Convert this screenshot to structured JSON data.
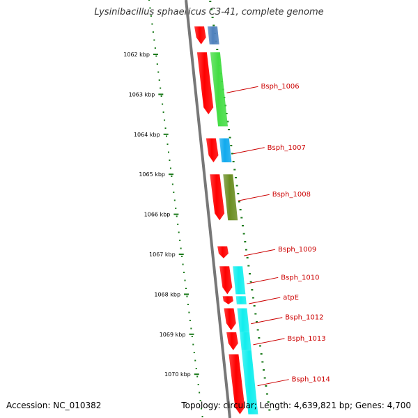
{
  "header": {
    "title": "Lysinibacillus sphaericus C3-41, complete genome"
  },
  "footer": {
    "accession": "Accession: NC_010382",
    "summary": "Topology: circular; Length: 4,639,821 bp; Genes: 4,700"
  },
  "scale": {
    "ticks": [
      "1062 kbp",
      "1063 kbp",
      "1064 kbp",
      "1065 kbp",
      "1066 kbp",
      "1067 kbp",
      "1068 kbp",
      "1069 kbp",
      "1070 kbp"
    ]
  },
  "colors": {
    "label_color": "#cc0000",
    "tick_color": "#1a7a1a",
    "backbone": "#777777",
    "orf_color": "#ff0000"
  },
  "genes": [
    {
      "name": "",
      "color": "#4f81bd",
      "start": 1061.3,
      "end": 1061.75
    },
    {
      "name": "Bsph_1006",
      "color": "#44dd44",
      "start": 1061.95,
      "end": 1063.8
    },
    {
      "name": "Bsph_1007",
      "color": "#11aaee",
      "start": 1064.1,
      "end": 1064.7
    },
    {
      "name": "Bsph_1008",
      "color": "#6b8e23",
      "start": 1065.0,
      "end": 1066.15
    },
    {
      "name": "Bsph_1009",
      "color": null,
      "start": 1066.8,
      "end": 1067.1
    },
    {
      "name": "Bsph_1010",
      "color": "#11eeee",
      "start": 1067.3,
      "end": 1068.0
    },
    {
      "name": "atpE",
      "color": "#11eeee",
      "start": 1068.05,
      "end": 1068.25
    },
    {
      "name": "Bsph_1012",
      "color": "#11eeee",
      "start": 1068.35,
      "end": 1068.95
    },
    {
      "name": "Bsph_1013",
      "color": "#11eeee",
      "start": 1068.95,
      "end": 1069.4
    },
    {
      "name": "Bsph_1014",
      "color": "#11eeee",
      "start": 1069.4,
      "end": 1071.0
    }
  ],
  "orfs": [
    {
      "start": 1061.3,
      "end": 1061.75
    },
    {
      "start": 1061.95,
      "end": 1063.5
    },
    {
      "start": 1064.1,
      "end": 1064.7
    },
    {
      "start": 1065.0,
      "end": 1066.15
    },
    {
      "start": 1066.8,
      "end": 1067.1
    },
    {
      "start": 1067.3,
      "end": 1068.0
    },
    {
      "start": 1068.05,
      "end": 1068.25
    },
    {
      "start": 1068.35,
      "end": 1068.9
    },
    {
      "start": 1068.95,
      "end": 1069.4
    },
    {
      "start": 1069.5,
      "end": 1071.0
    }
  ]
}
